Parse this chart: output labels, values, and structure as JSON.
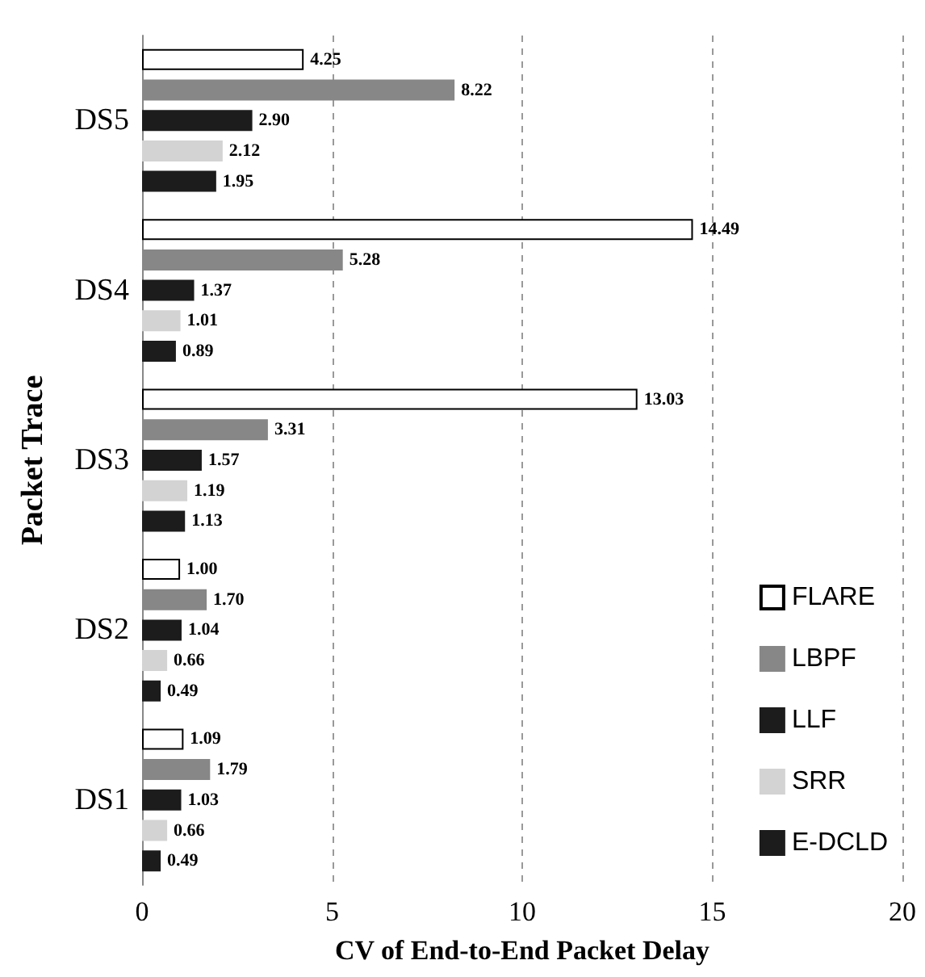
{
  "chart_data": {
    "type": "bar",
    "orientation": "horizontal",
    "xlabel": "CV of End-to-End Packet Delay",
    "ylabel": "Packet Trace",
    "categories": [
      "DS5",
      "DS4",
      "DS3",
      "DS2",
      "DS1"
    ],
    "series": [
      {
        "name": "FLARE",
        "color": "#ffffff",
        "values": [
          4.25,
          14.49,
          13.03,
          1.0,
          1.09
        ],
        "value_labels": [
          "4.25",
          "14.49",
          "13.03",
          "1.00",
          "1.09"
        ]
      },
      {
        "name": "LBPF",
        "color": "#878787",
        "values": [
          8.22,
          5.28,
          3.31,
          1.7,
          1.79
        ],
        "value_labels": [
          "8.22",
          "5.28",
          "3.31",
          "1.70",
          "1.79"
        ]
      },
      {
        "name": "LLF",
        "color": "#1c1c1c",
        "values": [
          2.9,
          1.37,
          1.57,
          1.04,
          1.03
        ],
        "value_labels": [
          "2.90",
          "1.37",
          "1.57",
          "1.04",
          "1.03"
        ]
      },
      {
        "name": "SRR",
        "color": "#d3d3d3",
        "values": [
          2.12,
          1.01,
          1.19,
          0.66,
          0.66
        ],
        "value_labels": [
          "2.12",
          "1.01",
          "1.19",
          "0.66",
          "0.66"
        ]
      },
      {
        "name": "E-DCLD",
        "color": "#1c1c1c",
        "values": [
          1.95,
          0.89,
          1.13,
          0.49,
          0.49
        ],
        "value_labels": [
          "1.95",
          "0.89",
          "1.13",
          "0.49",
          "0.49"
        ]
      }
    ],
    "xlim": [
      0,
      20
    ],
    "xticks": [
      0,
      5,
      10,
      15,
      20
    ],
    "grid": "x",
    "legend": "bottom right"
  }
}
